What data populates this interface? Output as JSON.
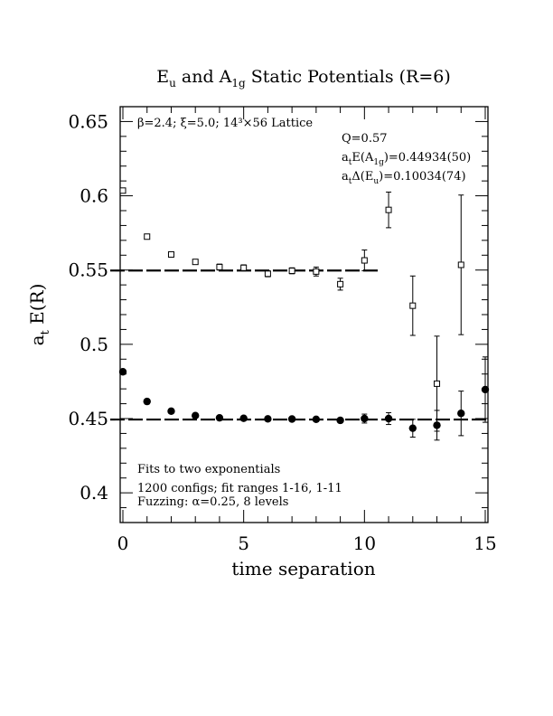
{
  "chart_data": {
    "type": "scatter",
    "title": "E_u and A_1g Static Potentials (R=6)",
    "title_parts": {
      "main": "E",
      "sub1": "u",
      "mid": " and A",
      "sub2": "1g",
      "tail": " Static Potentials (R=6)"
    },
    "xlabel": "time separation",
    "ylabel": "a_t E(R)",
    "ylabel_parts": {
      "main": "a",
      "sub": "t",
      "tail": " E(R)"
    },
    "xlim": [
      0,
      15
    ],
    "ylim": [
      0.38,
      0.66
    ],
    "xticks": [
      0,
      5,
      10,
      15
    ],
    "xtick_labels": [
      "0",
      "5",
      "10",
      "15"
    ],
    "yticks": [
      0.4,
      0.45,
      0.5,
      0.55,
      0.6,
      0.65
    ],
    "ytick_labels": [
      "0.4",
      "0.45",
      "0.5",
      "0.55",
      "0.6",
      "0.65"
    ],
    "grid": false,
    "annotations": {
      "lattice": "β=2.4; ξ=5.0; 14³×56 Lattice",
      "q": "Q=0.57",
      "a1g_fit": {
        "main": "a",
        "sub": "t",
        "mid": "E(A",
        "sub2": "1g",
        "tail": ")=0.44934(50)"
      },
      "eu_fit": {
        "main": "a",
        "sub": "t",
        "mid": "Δ(E",
        "sub2": "u",
        "tail": ")=0.10034(74)"
      },
      "fit_note": "Fits to two exponentials",
      "configs": "1200 configs; fit ranges 1-16, 1-11",
      "fuzzing": "Fuzzing: α=0.25, 8 levels"
    },
    "series": [
      {
        "name": "E_u",
        "marker": "open-square",
        "points": [
          {
            "x": 0,
            "y": 0.6035,
            "err": 0.001
          },
          {
            "x": 1,
            "y": 0.5725,
            "err": 0.001
          },
          {
            "x": 2,
            "y": 0.5605,
            "err": 0.001
          },
          {
            "x": 3,
            "y": 0.5555,
            "err": 0.001
          },
          {
            "x": 4,
            "y": 0.552,
            "err": 0.002
          },
          {
            "x": 5,
            "y": 0.5515,
            "err": 0.002
          },
          {
            "x": 6,
            "y": 0.5475,
            "err": 0.002
          },
          {
            "x": 7,
            "y": 0.5495,
            "err": 0.002
          },
          {
            "x": 8,
            "y": 0.549,
            "err": 0.003
          },
          {
            "x": 9,
            "y": 0.5405,
            "err": 0.004
          },
          {
            "x": 10,
            "y": 0.5565,
            "err": 0.007
          },
          {
            "x": 11,
            "y": 0.5905,
            "err": 0.012
          },
          {
            "x": 12,
            "y": 0.526,
            "err": 0.02
          },
          {
            "x": 13,
            "y": 0.4735,
            "err": 0.032
          },
          {
            "x": 14,
            "y": 0.5535,
            "err": 0.047
          }
        ],
        "fit": {
          "value": 0.54968,
          "x_range": [
            0,
            10.5
          ]
        }
      },
      {
        "name": "A_1g",
        "marker": "filled-circle",
        "points": [
          {
            "x": 0,
            "y": 0.4815,
            "err": 0.001
          },
          {
            "x": 1,
            "y": 0.4615,
            "err": 0.001
          },
          {
            "x": 2,
            "y": 0.455,
            "err": 0.001
          },
          {
            "x": 3,
            "y": 0.452,
            "err": 0.001
          },
          {
            "x": 4,
            "y": 0.4505,
            "err": 0.001
          },
          {
            "x": 5,
            "y": 0.4502,
            "err": 0.001
          },
          {
            "x": 6,
            "y": 0.4498,
            "err": 0.001
          },
          {
            "x": 7,
            "y": 0.4497,
            "err": 0.001
          },
          {
            "x": 8,
            "y": 0.4495,
            "err": 0.001
          },
          {
            "x": 9,
            "y": 0.4488,
            "err": 0.001
          },
          {
            "x": 10,
            "y": 0.45,
            "err": 0.003
          },
          {
            "x": 11,
            "y": 0.45,
            "err": 0.004
          },
          {
            "x": 12,
            "y": 0.4435,
            "err": 0.006
          },
          {
            "x": 13,
            "y": 0.4455,
            "err": 0.01
          },
          {
            "x": 14,
            "y": 0.4535,
            "err": 0.015
          },
          {
            "x": 15,
            "y": 0.4695,
            "err": 0.022
          }
        ],
        "fit": {
          "value": 0.44934,
          "x_range": [
            0,
            15
          ]
        }
      }
    ]
  }
}
